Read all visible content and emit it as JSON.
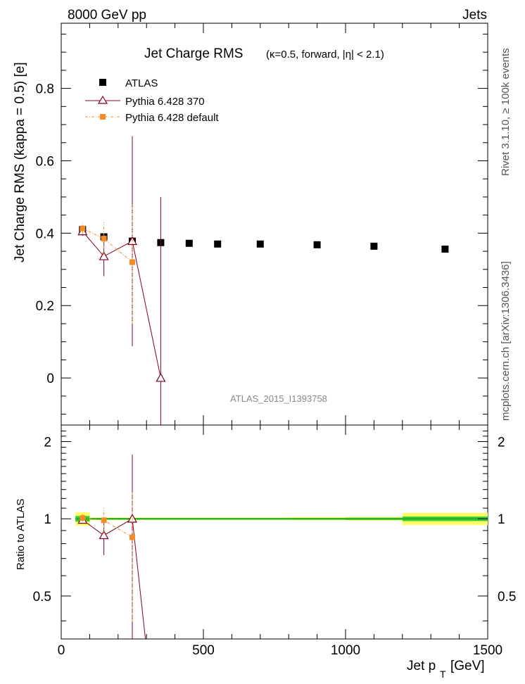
{
  "header": {
    "energy_label": "8000 GeV pp",
    "category_label": "Jets"
  },
  "side_labels": {
    "rivet": "Rivet 3.1.10, ≥ 100k events",
    "mcplots": "mcplots.cern.ch [arXiv:1306.3436]"
  },
  "watermark": "ATLAS_2015_I1393758",
  "colors": {
    "atlas": "#000000",
    "pythia370": "#800020",
    "pythia_default": "#f28c28",
    "band_inner": "#33cc33",
    "band_outer": "#ffff66"
  },
  "chart_data": [
    {
      "type": "scatter",
      "title": "Jet Charge RMS",
      "subtitle": "(κ=0.5, forward, |η| < 2.1)",
      "xlabel": "Jet pT [GeV]",
      "ylabel": "Jet Charge RMS (kappa = 0.5) [e]",
      "xlim": [
        0,
        1500
      ],
      "ylim": [
        -0.13,
        0.98
      ],
      "yticks": [
        0,
        0.2,
        0.4,
        0.6,
        0.8
      ],
      "ytick_labels": [
        "0",
        "0.2",
        "0.4",
        "0.6",
        "0.8"
      ],
      "legend_position": "top-left",
      "series": [
        {
          "name": "ATLAS",
          "marker": "square",
          "x": [
            75,
            150,
            250,
            350,
            450,
            550,
            700,
            900,
            1100,
            1350
          ],
          "xerr_lo": [
            25,
            50,
            50,
            50,
            50,
            50,
            100,
            100,
            100,
            150
          ],
          "xerr_hi": [
            25,
            50,
            50,
            50,
            50,
            50,
            100,
            100,
            100,
            150
          ],
          "y": [
            0.41,
            0.39,
            0.378,
            0.374,
            0.372,
            0.37,
            0.37,
            0.368,
            0.364,
            0.356
          ],
          "yerr": [
            0.004,
            0.003,
            0.003,
            0.003,
            0.003,
            0.003,
            0.003,
            0.003,
            0.003,
            0.004
          ]
        },
        {
          "name": "Pythia 6.428 370",
          "marker": "open-triangle",
          "x": [
            75,
            150,
            250,
            350
          ],
          "y": [
            0.405,
            0.336,
            0.378,
            0.0
          ],
          "yerr_lo": [
            0.012,
            0.055,
            0.29,
            0.5
          ],
          "yerr_hi": [
            0.012,
            0.055,
            0.29,
            0.5
          ]
        },
        {
          "name": "Pythia 6.428 default",
          "marker": "square-small",
          "x": [
            75,
            150,
            250
          ],
          "y": [
            0.413,
            0.385,
            0.32
          ],
          "yerr_lo": [
            0.015,
            0.045,
            0.17
          ],
          "yerr_hi": [
            0.015,
            0.045,
            0.16
          ]
        }
      ]
    },
    {
      "type": "scatter",
      "ylabel": "Ratio to ATLAS",
      "xlabel": "Jet pT [GeV]",
      "xlim": [
        0,
        1500
      ],
      "ylim": [
        0.34,
        2.32
      ],
      "log_y": true,
      "yticks": [
        0.5,
        1,
        2
      ],
      "ytick_labels": [
        "0.5",
        "1",
        "2"
      ],
      "xticks": [
        0,
        500,
        1000,
        1500
      ],
      "xtick_labels": [
        "0",
        "500",
        "1000",
        "1500"
      ],
      "reference_band": {
        "x_lo": [
          50,
          100,
          200,
          300,
          400,
          500,
          600,
          800,
          1000,
          1200
        ],
        "x_hi": [
          100,
          200,
          300,
          400,
          500,
          600,
          800,
          1000,
          1200,
          1500
        ],
        "inner": [
          0.025,
          0.008,
          0.008,
          0.008,
          0.008,
          0.008,
          0.008,
          0.008,
          0.01,
          0.02
        ],
        "outer": [
          0.06,
          0.012,
          0.012,
          0.012,
          0.012,
          0.012,
          0.012,
          0.014,
          0.016,
          0.055
        ]
      },
      "series": [
        {
          "name": "Pythia 6.428 370",
          "marker": "open-triangle",
          "x": [
            75,
            150,
            250,
            350
          ],
          "y": [
            0.99,
            0.862,
            1.0,
            0.0
          ],
          "yerr_lo": [
            0.03,
            0.14,
            0.76,
            1.3
          ],
          "yerr_hi": [
            0.03,
            0.14,
            0.78,
            0.33
          ]
        },
        {
          "name": "Pythia 6.428 default",
          "marker": "square-small",
          "x": [
            75,
            150,
            250
          ],
          "y": [
            1.007,
            0.987,
            0.847
          ],
          "yerr_lo": [
            0.035,
            0.115,
            0.45
          ],
          "yerr_hi": [
            0.035,
            0.115,
            0.42
          ]
        }
      ]
    }
  ]
}
